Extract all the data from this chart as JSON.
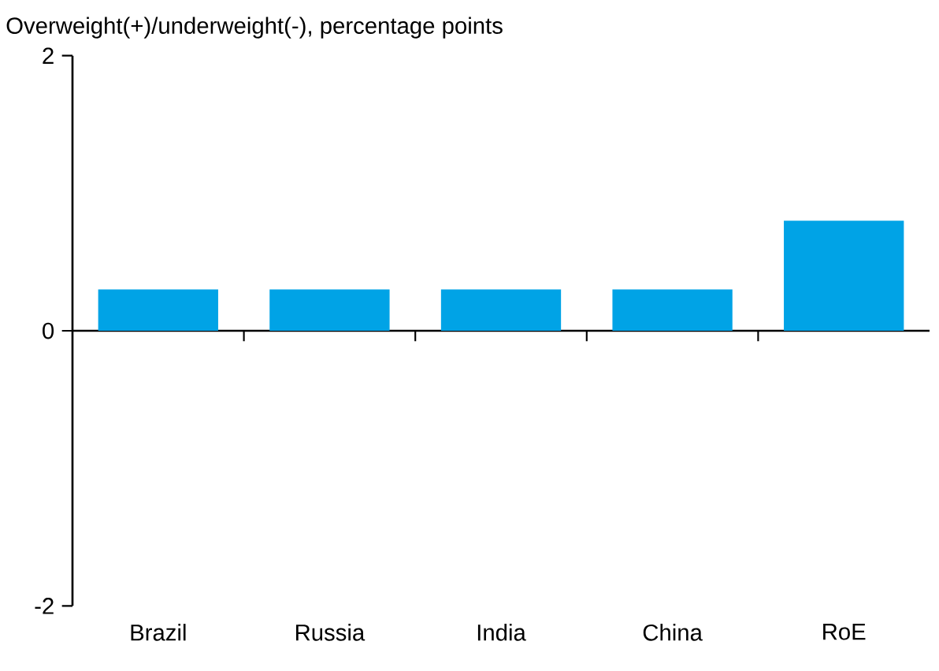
{
  "chart_data": {
    "type": "bar",
    "title": "Overweight(+)/underweight(-), percentage points",
    "categories": [
      "Brazil",
      "Russia",
      "India",
      "China",
      "RoE"
    ],
    "values": [
      0.3,
      0.3,
      0.3,
      0.3,
      0.8
    ],
    "color": "#00a3e6",
    "ylim": [
      -2,
      2
    ],
    "yticks": [
      -2,
      0,
      2
    ]
  }
}
